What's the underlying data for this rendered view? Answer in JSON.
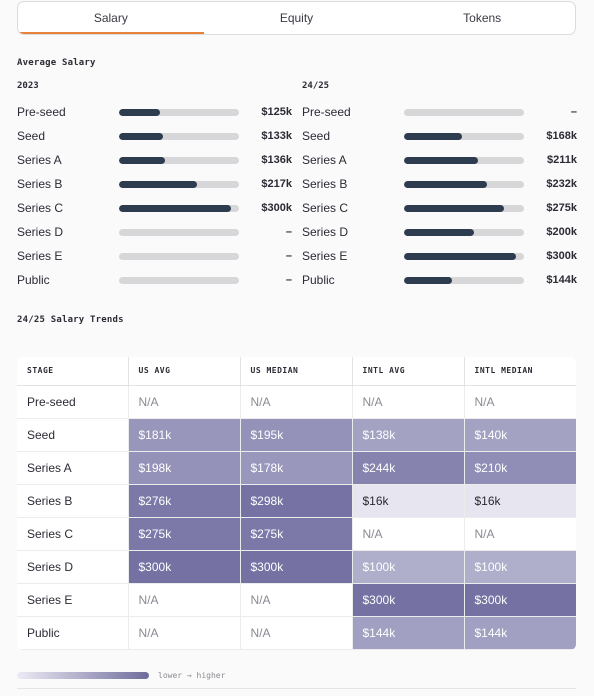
{
  "tabs": [
    {
      "label": "Salary",
      "active": true
    },
    {
      "label": "Equity",
      "active": false
    },
    {
      "label": "Tokens",
      "active": false
    }
  ],
  "average_salary": {
    "title": "Average Salary",
    "columns": [
      {
        "year": "2023",
        "rows": [
          {
            "stage": "Pre-seed",
            "value": "$125k",
            "fill": 0.34
          },
          {
            "stage": "Seed",
            "value": "$133k",
            "fill": 0.37
          },
          {
            "stage": "Series A",
            "value": "$136k",
            "fill": 0.38
          },
          {
            "stage": "Series B",
            "value": "$217k",
            "fill": 0.65
          },
          {
            "stage": "Series C",
            "value": "$300k",
            "fill": 0.93
          },
          {
            "stage": "Series D",
            "value": "–",
            "fill": 0
          },
          {
            "stage": "Series E",
            "value": "–",
            "fill": 0
          },
          {
            "stage": "Public",
            "value": "–",
            "fill": 0
          }
        ]
      },
      {
        "year": "24/25",
        "rows": [
          {
            "stage": "Pre-seed",
            "value": "–",
            "fill": 0
          },
          {
            "stage": "Seed",
            "value": "$168k",
            "fill": 0.48
          },
          {
            "stage": "Series A",
            "value": "$211k",
            "fill": 0.62
          },
          {
            "stage": "Series B",
            "value": "$232k",
            "fill": 0.69
          },
          {
            "stage": "Series C",
            "value": "$275k",
            "fill": 0.83
          },
          {
            "stage": "Series D",
            "value": "$200k",
            "fill": 0.58
          },
          {
            "stage": "Series E",
            "value": "$300k",
            "fill": 0.93
          },
          {
            "stage": "Public",
            "value": "$144k",
            "fill": 0.4
          }
        ]
      }
    ]
  },
  "trends": {
    "title": "24/25 Salary Trends",
    "headers": [
      "STAGE",
      "US AVG",
      "US MEDIAN",
      "INTL AVG",
      "INTL MEDIAN"
    ],
    "rows": [
      {
        "stage": "Pre-seed",
        "cells": [
          {
            "text": "N/A",
            "color": null
          },
          {
            "text": "N/A",
            "color": null
          },
          {
            "text": "N/A",
            "color": null
          },
          {
            "text": "N/A",
            "color": null
          }
        ]
      },
      {
        "stage": "Seed",
        "cells": [
          {
            "text": "$181k",
            "color": "#9996bc"
          },
          {
            "text": "$195k",
            "color": "#9592b9"
          },
          {
            "text": "$138k",
            "color": "#a4a2c3"
          },
          {
            "text": "$140k",
            "color": "#a4a2c3"
          }
        ]
      },
      {
        "stage": "Series A",
        "cells": [
          {
            "text": "$198k",
            "color": "#9592b9"
          },
          {
            "text": "$178k",
            "color": "#9a97bd"
          },
          {
            "text": "$244k",
            "color": "#8683af"
          },
          {
            "text": "$210k",
            "color": "#908db6"
          }
        ]
      },
      {
        "stage": "Series B",
        "cells": [
          {
            "text": "$276k",
            "color": "#7c78a8"
          },
          {
            "text": "$298k",
            "color": "#7672a4"
          },
          {
            "text": "$16k",
            "color": "#e6e5f0"
          },
          {
            "text": "$16k",
            "color": "#e6e5f0"
          }
        ]
      },
      {
        "stage": "Series C",
        "cells": [
          {
            "text": "$275k",
            "color": "#7c78a8"
          },
          {
            "text": "$275k",
            "color": "#7c78a8"
          },
          {
            "text": "N/A",
            "color": null
          },
          {
            "text": "N/A",
            "color": null
          }
        ]
      },
      {
        "stage": "Series D",
        "cells": [
          {
            "text": "$300k",
            "color": "#7571a3"
          },
          {
            "text": "$300k",
            "color": "#7571a3"
          },
          {
            "text": "$100k",
            "color": "#afaecb"
          },
          {
            "text": "$100k",
            "color": "#afaecb"
          }
        ]
      },
      {
        "stage": "Series E",
        "cells": [
          {
            "text": "N/A",
            "color": null
          },
          {
            "text": "N/A",
            "color": null
          },
          {
            "text": "$300k",
            "color": "#7571a3"
          },
          {
            "text": "$300k",
            "color": "#7571a3"
          }
        ]
      },
      {
        "stage": "Public",
        "cells": [
          {
            "text": "N/A",
            "color": null
          },
          {
            "text": "N/A",
            "color": null
          },
          {
            "text": "$144k",
            "color": "#a2a0c2"
          },
          {
            "text": "$144k",
            "color": "#a2a0c2"
          }
        ]
      }
    ]
  },
  "legend": {
    "label": "lower → higher"
  },
  "colors": {
    "accent": "#e8823a",
    "bar_fill": "#2e3c50",
    "bar_track": "#d7d7da"
  }
}
